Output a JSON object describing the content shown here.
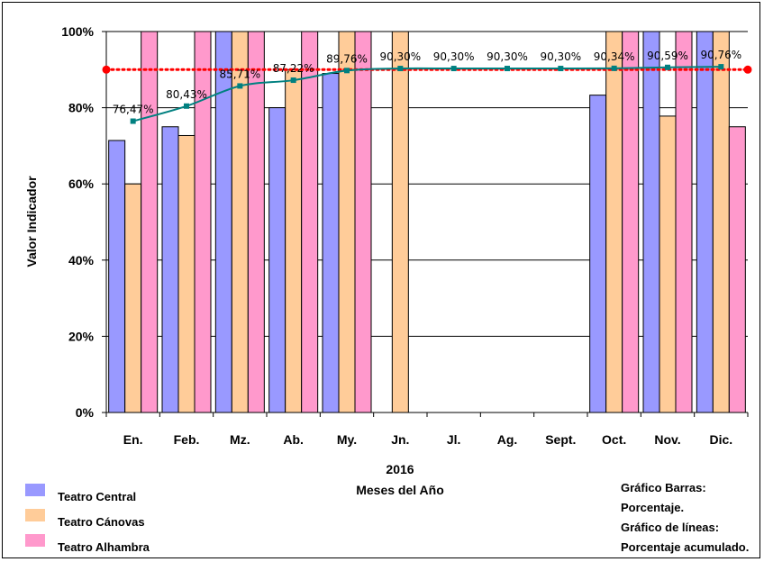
{
  "chart_data": {
    "type": "bar",
    "categories": [
      "En.",
      "Feb.",
      "Mz.",
      "Ab.",
      "My.",
      "Jn.",
      "Jl.",
      "Ag.",
      "Sept.",
      "Oct.",
      "Nov.",
      "Dic."
    ],
    "series": [
      {
        "name": "Teatro Central",
        "color": "#9999ff",
        "values": [
          71.4,
          75,
          100,
          80,
          89,
          null,
          null,
          null,
          null,
          83.3,
          100,
          100
        ]
      },
      {
        "name": "Teatro Cánovas",
        "color": "#ffcc99",
        "values": [
          60,
          72.7,
          100,
          90,
          100,
          100,
          null,
          null,
          null,
          100,
          77.8,
          100
        ]
      },
      {
        "name": "Teatro Alhambra",
        "color": "#ff99cc",
        "values": [
          100,
          100,
          100,
          100,
          100,
          null,
          null,
          null,
          null,
          100,
          100,
          75
        ]
      }
    ],
    "line": {
      "color": "#008080",
      "values": [
        76.47,
        80.43,
        85.71,
        87.22,
        89.76,
        90.3,
        90.3,
        90.3,
        90.3,
        90.34,
        90.59,
        90.76
      ],
      "labels": [
        "76,47%",
        "80,43%",
        "85,71%",
        "87,22%",
        "89,76%",
        "90,30%",
        "90,30%",
        "90,30%",
        "90,30%",
        "90,34%",
        "90,59%",
        "90,76%"
      ]
    },
    "target": {
      "value": 90,
      "color": "#ff0000"
    },
    "ylim": [
      0,
      100
    ],
    "yticks": [
      0,
      20,
      40,
      60,
      80,
      100
    ],
    "ytick_labels": [
      "0%",
      "20%",
      "40%",
      "60%",
      "80%",
      "100%"
    ],
    "ylabel": "Valor Indicador",
    "xlabel_line1": "2016",
    "xlabel_line2": "Meses del Año",
    "grid": true,
    "legend_position": "bottom-left"
  },
  "notes": [
    "Gráfico Barras:",
    "Porcentaje.",
    "Gráfico de líneas:",
    "Porcentaje acumulado."
  ]
}
